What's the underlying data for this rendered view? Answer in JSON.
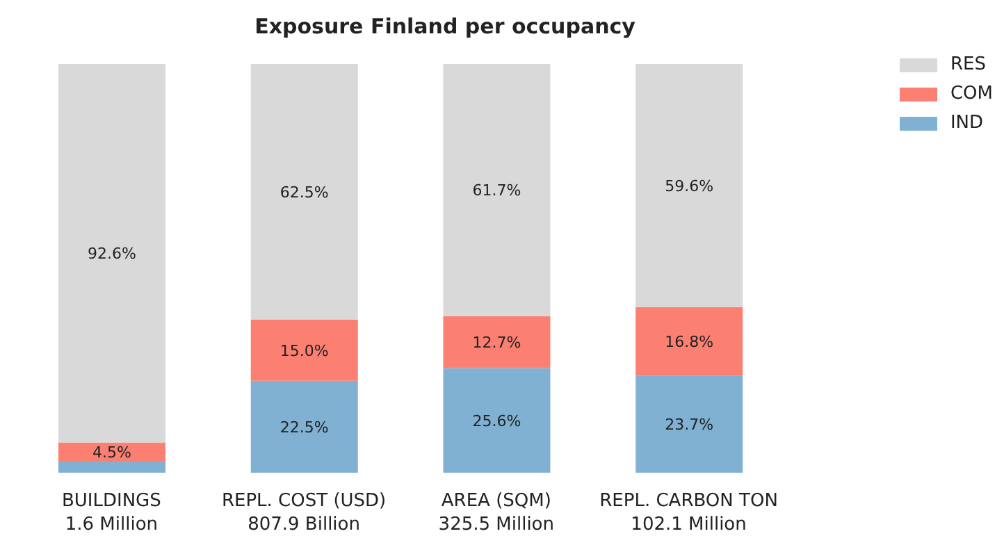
{
  "chart_data": {
    "type": "bar",
    "title": "Exposure Finland per occupancy",
    "stacked": true,
    "categories": [
      "BUILDINGS\n1.6 Million",
      "REPL. COST (USD)\n807.9 Billion",
      "AREA (SQM)\n325.5 Million",
      "REPL. CARBON TON\n102.1 Million"
    ],
    "series": [
      {
        "name": "IND",
        "color": "#80b1d3",
        "values": [
          2.9,
          22.5,
          25.6,
          23.7
        ],
        "value_labels": [
          null,
          "22.5%",
          "25.6%",
          "23.7%"
        ]
      },
      {
        "name": "COM",
        "color": "#fb8072",
        "values": [
          4.5,
          15.0,
          12.7,
          16.8
        ],
        "value_labels": [
          "4.5%",
          "15.0%",
          "12.7%",
          "16.8%"
        ]
      },
      {
        "name": "RES",
        "color": "#d9d9d9",
        "values": [
          92.6,
          62.5,
          61.7,
          59.6
        ],
        "value_labels": [
          "92.6%",
          "62.5%",
          "61.7%",
          "59.6%"
        ]
      }
    ],
    "ylim": [
      0,
      100
    ],
    "tick_labels": "x",
    "legend": "top right",
    "grid": false
  }
}
